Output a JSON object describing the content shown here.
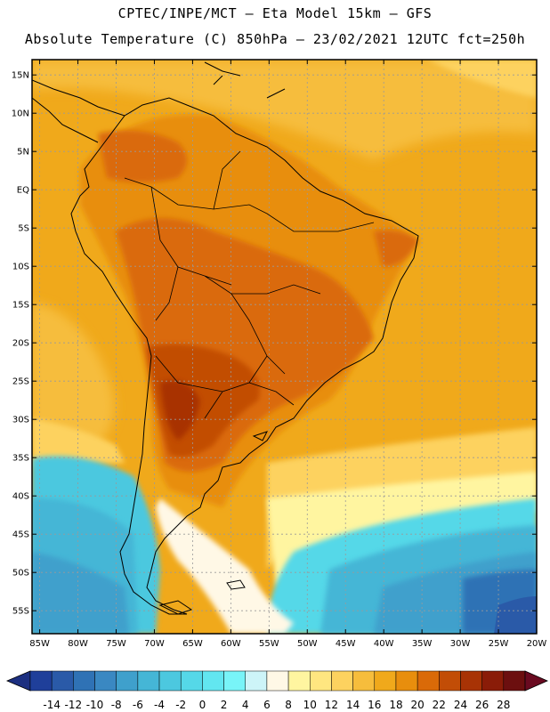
{
  "header": {
    "title_line1": "CPTEC/INPE/MCT –  Eta Model 15km – GFS",
    "title_line2": "Absolute Temperature (C) 850hPa – 23/02/2021 12UTC fct=250h"
  },
  "map": {
    "lat_labels": [
      "15N",
      "10N",
      "5N",
      "EQ",
      "5S",
      "10S",
      "15S",
      "20S",
      "25S",
      "30S",
      "35S",
      "40S",
      "45S",
      "50S",
      "55S"
    ],
    "lon_labels": [
      "85W",
      "80W",
      "75W",
      "70W",
      "65W",
      "60W",
      "55W",
      "50W",
      "45W",
      "40W",
      "35W",
      "30W",
      "25W",
      "20W"
    ]
  },
  "colorbar": {
    "labels": [
      "-14",
      "-12",
      "-10",
      "-8",
      "-6",
      "-4",
      "-2",
      "0",
      "2",
      "4",
      "6",
      "8",
      "10",
      "12",
      "14",
      "16",
      "18",
      "20",
      "22",
      "24",
      "26",
      "28"
    ],
    "colors": [
      "#1f3f9a",
      "#2a5aa8",
      "#2f72b5",
      "#3a88c2",
      "#3fa0cc",
      "#45b6d6",
      "#4cc8df",
      "#55d8e8",
      "#62e6f0",
      "#78f4f8",
      "#cdf4f8",
      "#fff8e6",
      "#fff5a0",
      "#ffe680",
      "#fdd25f",
      "#f6bd3c",
      "#f0a91b",
      "#e88e0d",
      "#da6a08",
      "#c24d06",
      "#a83305",
      "#8a1c08",
      "#6c0f0f"
    ],
    "low_arrow_color": "#1c2f80",
    "high_arrow_color": "#6a0a20"
  }
}
